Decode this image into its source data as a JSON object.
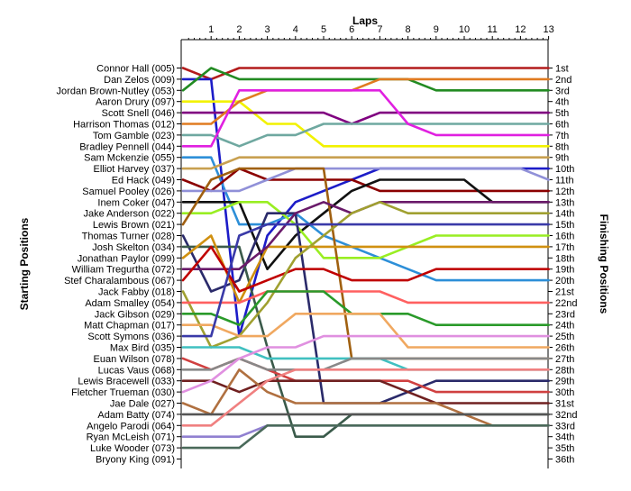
{
  "chart_data": {
    "type": "line",
    "title": "",
    "x_title": "Laps",
    "left_axis_title": "Starting Positions",
    "right_axis_title": "Finishing Positions",
    "laps": [
      0,
      1,
      2,
      3,
      4,
      5,
      6,
      7,
      8,
      9,
      10,
      11,
      12,
      13
    ],
    "x_tick_labels": [
      "1",
      "2",
      "3",
      "4",
      "5",
      "6",
      "7",
      "8",
      "9",
      "10",
      "11",
      "12",
      "13"
    ],
    "ylim": [
      1,
      36
    ],
    "grid": false,
    "legend": "none",
    "starting_grid": [
      "Connor Hall (005)",
      "Dan Zelos (009)",
      "Jordan Brown-Nutley (053)",
      "Aaron Drury (097)",
      "Scott Snell (046)",
      "Harrison Thomas (012)",
      "Tom Gamble (023)",
      "Bradley Pennell (044)",
      "Sam Mckenzie (055)",
      "Elliot Harvey (037)",
      "Ed Hack (049)",
      "Samuel Pooley (026)",
      "Inem Coker (047)",
      "Jake Anderson (022)",
      "Lewis Brown (021)",
      "Thomas Turner (028)",
      "Josh Skelton (034)",
      "Jonathan Paylor (099)",
      "William Tregurtha (072)",
      "Stef Charalambous (067)",
      "Jack Fabby (018)",
      "Adam Smalley (054)",
      "Jack Gibson (029)",
      "Matt Chapman (017)",
      "Scott Symons (036)",
      "Max Bird (035)",
      "Euan Wilson (078)",
      "Lucas Vaus (068)",
      "Lewis Bracewell (033)",
      "Fletcher Trueman (030)",
      "Jae Dale (027)",
      "Adam Batty (074)",
      "Angelo Parodi (064)",
      "Ryan McLeish (071)",
      "Luke Wooder (073)",
      "Bryony King (091)"
    ],
    "finishing_labels": [
      "1st",
      "2nd",
      "3rd",
      "4th",
      "5th",
      "6th",
      "7th",
      "8th",
      "9th",
      "10th",
      "11th",
      "12th",
      "13th",
      "14th",
      "15th",
      "16th",
      "17th",
      "18th",
      "19th",
      "20th",
      "21st",
      "22nd",
      "23rd",
      "24th",
      "25th",
      "26th",
      "27th",
      "28th",
      "29th",
      "30th",
      "31st",
      "32nd",
      "33rd",
      "34th",
      "35th",
      "36th"
    ],
    "series": [
      {
        "color": "#b31b1b",
        "positions": [
          1,
          2,
          1,
          1,
          1,
          1,
          1,
          1,
          1,
          1,
          1,
          1,
          1,
          1
        ]
      },
      {
        "color": "#1c1cc8",
        "positions": [
          2,
          2,
          25,
          16,
          13,
          12,
          11,
          10,
          10,
          10,
          10,
          10,
          10,
          10
        ]
      },
      {
        "color": "#228b22",
        "positions": [
          3,
          1,
          2,
          2,
          2,
          2,
          2,
          2,
          2,
          3,
          3,
          3,
          3,
          3
        ]
      },
      {
        "color": "#f2f200",
        "positions": [
          4,
          4,
          4,
          6,
          6,
          8,
          8,
          8,
          8,
          8,
          8,
          8,
          8,
          8
        ]
      },
      {
        "color": "#800080",
        "positions": [
          5,
          5,
          5,
          5,
          5,
          5,
          6,
          5,
          5,
          5,
          5,
          5,
          5,
          5
        ]
      },
      {
        "color": "#e07b20",
        "positions": [
          6,
          6,
          4,
          3,
          3,
          3,
          3,
          2,
          2,
          2,
          2,
          2,
          2,
          2
        ]
      },
      {
        "color": "#6fa8a0",
        "positions": [
          7,
          7,
          8,
          7,
          7,
          6,
          6,
          6,
          6,
          6,
          6,
          6,
          6,
          6
        ]
      },
      {
        "color": "#e020e0",
        "positions": [
          8,
          8,
          3,
          3,
          3,
          3,
          3,
          3,
          6,
          7,
          7,
          7,
          7,
          7
        ]
      },
      {
        "color": "#2d8fd8",
        "positions": [
          9,
          9,
          15,
          15,
          14,
          16,
          17,
          18,
          19,
          20,
          20,
          20,
          20,
          20
        ]
      },
      {
        "color": "#c8a050",
        "positions": [
          10,
          10,
          9,
          9,
          9,
          9,
          9,
          9,
          9,
          9,
          9,
          9,
          9,
          9
        ]
      },
      {
        "color": "#8b0000",
        "positions": [
          11,
          12,
          10,
          11,
          11,
          11,
          11,
          12,
          12,
          12,
          12,
          12,
          12,
          12
        ]
      },
      {
        "color": "#9090d8",
        "positions": [
          12,
          12,
          12,
          11,
          10,
          10,
          10,
          10,
          10,
          10,
          10,
          10,
          10,
          11
        ]
      },
      {
        "color": "#111111",
        "positions": [
          13,
          13,
          13,
          19,
          16,
          14,
          12,
          11,
          11,
          11,
          11,
          13,
          13,
          13
        ]
      },
      {
        "color": "#99ee22",
        "positions": [
          14,
          14,
          13,
          13,
          15,
          18,
          18,
          18,
          17,
          16,
          16,
          16,
          16,
          16
        ]
      },
      {
        "color": "#a06010",
        "positions": [
          15,
          11,
          10,
          10,
          10,
          10,
          27,
          27,
          27,
          27,
          27,
          27,
          27,
          27
        ]
      },
      {
        "color": "#2a2a6a",
        "positions": [
          16,
          21,
          20,
          14,
          14,
          31,
          31,
          31,
          30,
          29,
          29,
          29,
          29,
          29
        ]
      },
      {
        "color": "#3a5a4a",
        "positions": [
          17,
          17,
          17,
          26,
          34,
          34,
          32,
          32,
          32,
          32,
          32,
          32,
          32,
          32
        ]
      },
      {
        "color": "#d09010",
        "positions": [
          18,
          16,
          22,
          17,
          17,
          17,
          17,
          17,
          17,
          17,
          17,
          17,
          17,
          17
        ]
      },
      {
        "color": "#6a1a6a",
        "positions": [
          19,
          19,
          19,
          17,
          14,
          13,
          14,
          13,
          13,
          13,
          13,
          13,
          13,
          13
        ]
      },
      {
        "color": "#c00000",
        "positions": [
          20,
          17,
          21,
          20,
          19,
          19,
          20,
          20,
          20,
          19,
          19,
          19,
          19,
          19
        ]
      },
      {
        "color": "#a0a030",
        "positions": [
          21,
          26,
          25,
          22,
          18,
          16,
          14,
          13,
          14,
          14,
          14,
          14,
          14,
          14
        ]
      },
      {
        "color": "#ff6060",
        "positions": [
          22,
          22,
          22,
          21,
          21,
          21,
          21,
          21,
          22,
          22,
          22,
          22,
          22,
          22
        ]
      },
      {
        "color": "#2a9a2a",
        "positions": [
          23,
          23,
          24,
          21,
          21,
          21,
          23,
          23,
          23,
          24,
          24,
          24,
          24,
          24
        ]
      },
      {
        "color": "#f0a860",
        "positions": [
          24,
          24,
          25,
          25,
          23,
          23,
          23,
          23,
          26,
          26,
          26,
          26,
          26,
          26
        ]
      },
      {
        "color": "#3a3aa8",
        "positions": [
          25,
          25,
          16,
          15,
          15,
          15,
          15,
          15,
          15,
          15,
          15,
          15,
          15,
          15
        ]
      },
      {
        "color": "#40c0c0",
        "positions": [
          26,
          26,
          26,
          27,
          27,
          27,
          27,
          27,
          28,
          28,
          28,
          28,
          28,
          28
        ]
      },
      {
        "color": "#d04040",
        "positions": [
          27,
          28,
          27,
          28,
          29,
          29,
          29,
          29,
          29,
          30,
          30,
          30,
          30,
          30
        ]
      },
      {
        "color": "#888888",
        "positions": [
          28,
          28,
          27,
          28,
          28,
          28,
          27,
          27,
          27,
          27,
          27,
          27,
          27,
          27
        ]
      },
      {
        "color": "#702020",
        "positions": [
          29,
          29,
          30,
          29,
          29,
          29,
          29,
          29,
          30,
          31,
          31,
          31,
          31,
          31
        ]
      },
      {
        "color": "#e090e0",
        "positions": [
          30,
          29,
          27,
          26,
          26,
          25,
          25,
          25,
          25,
          25,
          25,
          25,
          25,
          25
        ]
      },
      {
        "color": "#b07040",
        "positions": [
          31,
          32,
          28,
          30,
          31,
          31,
          31,
          31,
          31,
          31,
          32,
          33,
          33,
          33
        ]
      },
      {
        "color": "#555555",
        "positions": [
          32,
          32,
          32,
          32,
          32,
          32,
          32,
          32,
          32,
          32,
          32,
          32,
          32,
          32
        ]
      },
      {
        "color": "#f08080",
        "positions": [
          33,
          33,
          31,
          29,
          28,
          28,
          28,
          28,
          28,
          28,
          28,
          28,
          28,
          28
        ]
      },
      {
        "color": "#9080d0",
        "positions": [
          34,
          34,
          34,
          33,
          33,
          33,
          33,
          33,
          33,
          33,
          33,
          33,
          33,
          33
        ]
      },
      {
        "color": "#4a6a5a",
        "positions": [
          35,
          35,
          35,
          33,
          33,
          33,
          33,
          33,
          33,
          33,
          33,
          33,
          33,
          33
        ]
      }
    ]
  }
}
